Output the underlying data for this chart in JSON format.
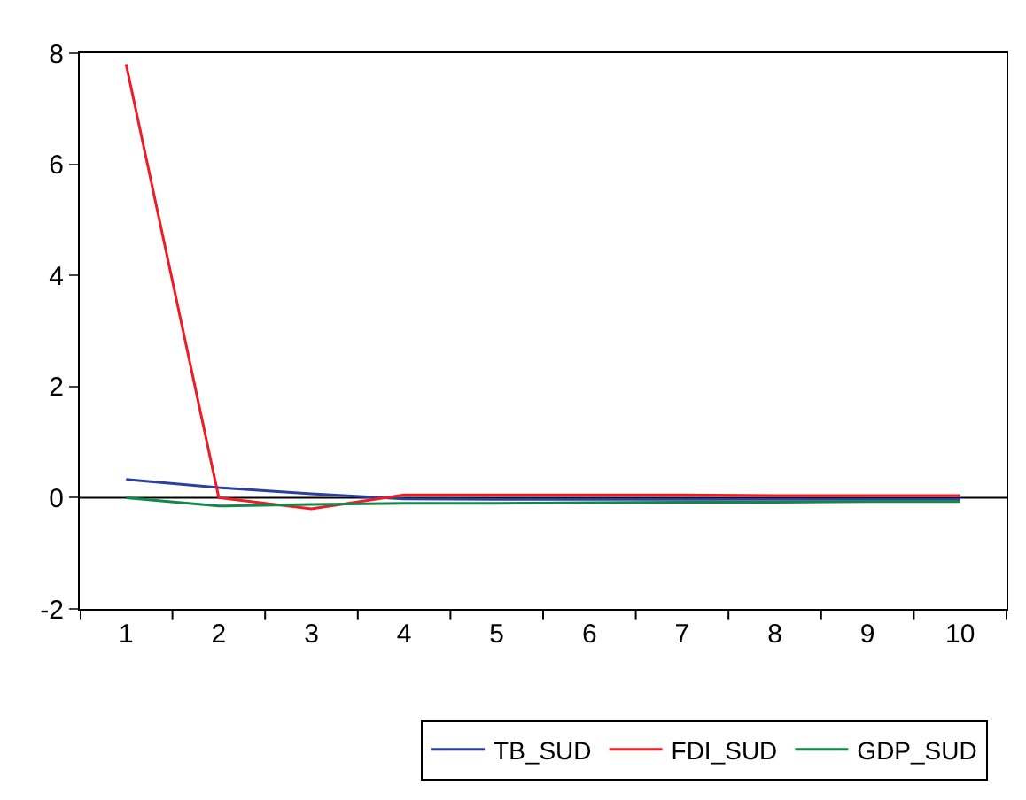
{
  "chart_data": {
    "type": "line",
    "categories": [
      "1",
      "2",
      "3",
      "4",
      "5",
      "6",
      "7",
      "8",
      "9",
      "10"
    ],
    "series": [
      {
        "name": "TB_SUD",
        "color": "#2b3f9e",
        "values": [
          0.33,
          0.18,
          0.07,
          -0.02,
          -0.03,
          -0.03,
          -0.03,
          -0.03,
          -0.03,
          -0.03
        ]
      },
      {
        "name": "FDI_SUD",
        "color": "#ee1c25",
        "values": [
          7.8,
          0.0,
          -0.2,
          0.05,
          0.05,
          0.05,
          0.05,
          0.04,
          0.04,
          0.04
        ]
      },
      {
        "name": "GDP_SUD",
        "color": "#13874b",
        "values": [
          0.0,
          -0.15,
          -0.12,
          -0.1,
          -0.1,
          -0.09,
          -0.08,
          -0.08,
          -0.07,
          -0.07
        ]
      }
    ],
    "ylim": [
      -2,
      8
    ],
    "yticks": [
      -2,
      0,
      2,
      4,
      6,
      8
    ],
    "ref_lines": [
      {
        "axis": "y",
        "value": 0,
        "color": "#000000"
      }
    ],
    "grid": false,
    "legend": "bottom",
    "marker": "none",
    "line_style": "solid"
  }
}
